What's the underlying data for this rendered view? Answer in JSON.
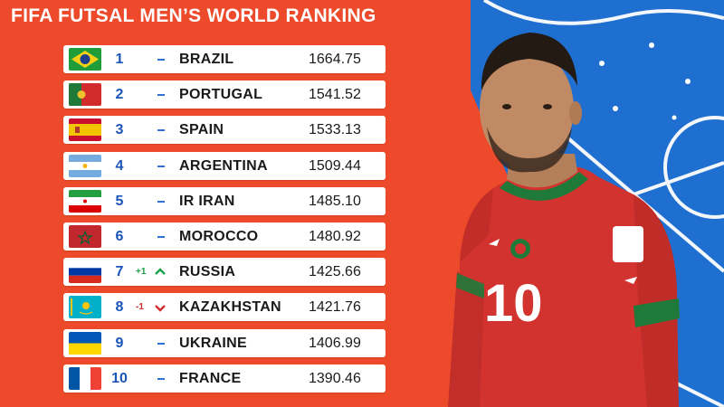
{
  "title": "FIFA FUTSAL MEN’S WORLD RANKING",
  "colors": {
    "background_left": "#ec4a2a",
    "background_right": "#1f6fd1",
    "rank_text": "#1b55b7",
    "up": "#18a34a",
    "down": "#d32f2f"
  },
  "rankings": [
    {
      "rank": "1",
      "movement": "",
      "direction": "none",
      "country": "BRAZIL",
      "points": "1664.75",
      "flag": "brazil-flag"
    },
    {
      "rank": "2",
      "movement": "",
      "direction": "none",
      "country": "PORTUGAL",
      "points": "1541.52",
      "flag": "portugal-flag"
    },
    {
      "rank": "3",
      "movement": "",
      "direction": "none",
      "country": "SPAIN",
      "points": "1533.13",
      "flag": "spain-flag"
    },
    {
      "rank": "4",
      "movement": "",
      "direction": "none",
      "country": "ARGENTINA",
      "points": "1509.44",
      "flag": "argentina-flag"
    },
    {
      "rank": "5",
      "movement": "",
      "direction": "none",
      "country": "IR IRAN",
      "points": "1485.10",
      "flag": "iran-flag"
    },
    {
      "rank": "6",
      "movement": "",
      "direction": "none",
      "country": "MOROCCO",
      "points": "1480.92",
      "flag": "morocco-flag"
    },
    {
      "rank": "7",
      "movement": "+1",
      "direction": "up",
      "country": "RUSSIA",
      "points": "1425.66",
      "flag": "russia-flag"
    },
    {
      "rank": "8",
      "movement": "-1",
      "direction": "down",
      "country": "KAZAKHSTAN",
      "points": "1421.76",
      "flag": "kazakhstan-flag"
    },
    {
      "rank": "9",
      "movement": "",
      "direction": "none",
      "country": "UKRAINE",
      "points": "1406.99",
      "flag": "ukraine-flag"
    },
    {
      "rank": "10",
      "movement": "",
      "direction": "none",
      "country": "FRANCE",
      "points": "1390.46",
      "flag": "france-flag"
    }
  ],
  "player": {
    "shirt_number": "10",
    "icon": "futsal-player-photo"
  }
}
